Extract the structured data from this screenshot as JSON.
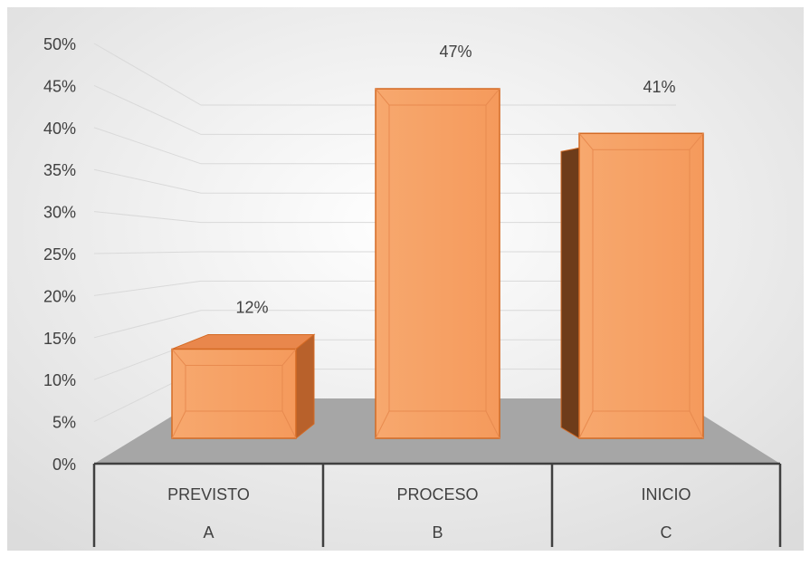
{
  "chart_data": {
    "type": "bar",
    "title": "",
    "xlabel": "",
    "ylabel": "",
    "ylim": [
      0,
      50
    ],
    "y_ticks": [
      "0%",
      "5%",
      "10%",
      "15%",
      "20%",
      "25%",
      "30%",
      "35%",
      "40%",
      "45%",
      "50%"
    ],
    "y_tick_values": [
      0,
      5,
      10,
      15,
      20,
      25,
      30,
      35,
      40,
      45,
      50
    ],
    "categories": [
      {
        "label": "PREVISTO",
        "sub": "A"
      },
      {
        "label": "PROCESO",
        "sub": "B"
      },
      {
        "label": "INICIO",
        "sub": "C"
      }
    ],
    "values": [
      12,
      47,
      41
    ],
    "data_labels": [
      "12%",
      "47%",
      "41%"
    ],
    "grid": true,
    "legend": "none",
    "colors": {
      "bar_front": "#f4a56b",
      "bar_top": "#e9874c",
      "bar_side": "#b8612b",
      "bar_side_dark": "#6e3c1a",
      "bar_edge": "#d46a24",
      "floor": "#a6a6a6",
      "gridline": "#d9d9d9",
      "text": "#404040"
    }
  }
}
